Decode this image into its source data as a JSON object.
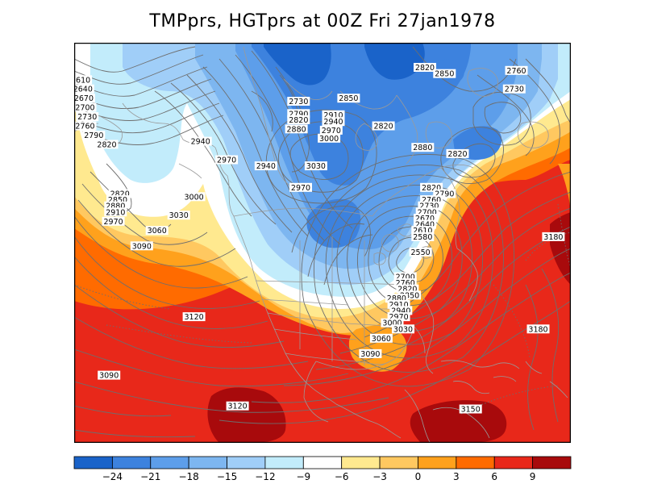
{
  "title": "TMPprs, HGTprs at 00Z Fri 27jan1978",
  "colorbar": {
    "colors": [
      "#1a63c9",
      "#3d82de",
      "#5d9eea",
      "#7db6f0",
      "#a0cef8",
      "#c2ecfb",
      "#ffffff",
      "#ffe98f",
      "#ffc860",
      "#ffa11c",
      "#ff6b00",
      "#e8281a",
      "#a80a0c"
    ],
    "tick_labels": [
      "-24",
      "-21",
      "-18",
      "-15",
      "-12",
      "-9",
      "-6",
      "-3",
      "0",
      "3",
      "6",
      "9"
    ]
  },
  "height_contour_labels": [
    {
      "text": "2610",
      "lon": -150.5,
      "lat": 62.0
    },
    {
      "text": "2640",
      "lon": -150.0,
      "lat": 60.5
    },
    {
      "text": "2670",
      "lon": -149.8,
      "lat": 59.0
    },
    {
      "text": "2700",
      "lon": -149.5,
      "lat": 57.5
    },
    {
      "text": "2730",
      "lon": -149.0,
      "lat": 56.0
    },
    {
      "text": "2760",
      "lon": -149.5,
      "lat": 54.5
    },
    {
      "text": "2790",
      "lon": -147.5,
      "lat": 53.0
    },
    {
      "text": "2820",
      "lon": -144.5,
      "lat": 51.5
    },
    {
      "text": "2940",
      "lon": -123.0,
      "lat": 52.0
    },
    {
      "text": "2970",
      "lon": -117.0,
      "lat": 49.0
    },
    {
      "text": "2730",
      "lon": -100.5,
      "lat": 58.5
    },
    {
      "text": "2790",
      "lon": -100.5,
      "lat": 56.5
    },
    {
      "text": "2820",
      "lon": -100.5,
      "lat": 55.5
    },
    {
      "text": "2880",
      "lon": -101.0,
      "lat": 54.0
    },
    {
      "text": "2850",
      "lon": -89.0,
      "lat": 59.0
    },
    {
      "text": "2910",
      "lon": -92.5,
      "lat": 56.3
    },
    {
      "text": "2940",
      "lon": -92.5,
      "lat": 55.2
    },
    {
      "text": "2970",
      "lon": -93.0,
      "lat": 53.8
    },
    {
      "text": "3000",
      "lon": -93.5,
      "lat": 52.5
    },
    {
      "text": "2820",
      "lon": -71.5,
      "lat": 64.0
    },
    {
      "text": "2850",
      "lon": -67.0,
      "lat": 63.0
    },
    {
      "text": "2760",
      "lon": -50.5,
      "lat": 63.5
    },
    {
      "text": "2730",
      "lon": -51.0,
      "lat": 60.5
    },
    {
      "text": "2820",
      "lon": -81.0,
      "lat": 54.5
    },
    {
      "text": "2880",
      "lon": -72.0,
      "lat": 51.0
    },
    {
      "text": "2820",
      "lon": -64.0,
      "lat": 50.0
    },
    {
      "text": "3030",
      "lon": -96.5,
      "lat": 48.0
    },
    {
      "text": "2940",
      "lon": -108.0,
      "lat": 48.0
    },
    {
      "text": "2970",
      "lon": -100.0,
      "lat": 44.5
    },
    {
      "text": "2820",
      "lon": -141.5,
      "lat": 43.5
    },
    {
      "text": "2850",
      "lon": -142.0,
      "lat": 42.5
    },
    {
      "text": "2880",
      "lon": -142.5,
      "lat": 41.5
    },
    {
      "text": "2910",
      "lon": -142.5,
      "lat": 40.5
    },
    {
      "text": "2970",
      "lon": -143.0,
      "lat": 39.0
    },
    {
      "text": "3000",
      "lon": -124.5,
      "lat": 43.0
    },
    {
      "text": "3030",
      "lon": -128.0,
      "lat": 40.0
    },
    {
      "text": "3060",
      "lon": -133.0,
      "lat": 37.5
    },
    {
      "text": "3090",
      "lon": -136.5,
      "lat": 35.0
    },
    {
      "text": "2820",
      "lon": -70.0,
      "lat": 44.5
    },
    {
      "text": "2790",
      "lon": -67.0,
      "lat": 43.5
    },
    {
      "text": "2760",
      "lon": -70.0,
      "lat": 42.5
    },
    {
      "text": "2730",
      "lon": -70.5,
      "lat": 41.5
    },
    {
      "text": "2700",
      "lon": -71.0,
      "lat": 40.5
    },
    {
      "text": "2670",
      "lon": -71.5,
      "lat": 39.5
    },
    {
      "text": "2640",
      "lon": -71.5,
      "lat": 38.5
    },
    {
      "text": "2610",
      "lon": -72.0,
      "lat": 37.5
    },
    {
      "text": "2580",
      "lon": -72.0,
      "lat": 36.5
    },
    {
      "text": "2550",
      "lon": -72.5,
      "lat": 34.0
    },
    {
      "text": "2700",
      "lon": -76.0,
      "lat": 30.0
    },
    {
      "text": "2760",
      "lon": -76.0,
      "lat": 29.0
    },
    {
      "text": "2820",
      "lon": -75.5,
      "lat": 28.0
    },
    {
      "text": "2850",
      "lon": -75.0,
      "lat": 27.0
    },
    {
      "text": "2880",
      "lon": -78.0,
      "lat": 26.5
    },
    {
      "text": "2910",
      "lon": -77.5,
      "lat": 25.5
    },
    {
      "text": "2940",
      "lon": -77.0,
      "lat": 24.5
    },
    {
      "text": "2970",
      "lon": -77.5,
      "lat": 23.5
    },
    {
      "text": "3000",
      "lon": -79.0,
      "lat": 22.5
    },
    {
      "text": "3030",
      "lon": -76.5,
      "lat": 21.5
    },
    {
      "text": "3060",
      "lon": -81.5,
      "lat": 20.0
    },
    {
      "text": "3090",
      "lon": -84.0,
      "lat": 17.5
    },
    {
      "text": "3120",
      "lon": -124.5,
      "lat": 23.5
    },
    {
      "text": "3180",
      "lon": -42.0,
      "lat": 36.5
    },
    {
      "text": "3180",
      "lon": -45.5,
      "lat": 21.5
    },
    {
      "text": "3090",
      "lon": -144.0,
      "lat": 14.0
    },
    {
      "text": "3120",
      "lon": -114.5,
      "lat": 9.0
    },
    {
      "text": "3150",
      "lon": -61.0,
      "lat": 8.5
    }
  ]
}
